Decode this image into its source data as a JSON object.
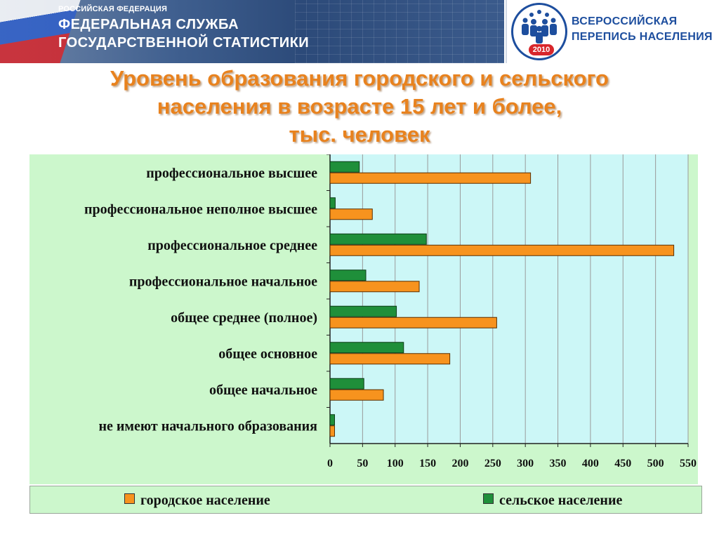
{
  "header": {
    "org_small": "РОССИЙСКАЯ ФЕДЕРАЦИЯ",
    "org_line1": "ФЕДЕРАЛЬНАЯ СЛУЖБА",
    "org_line2": "ГОСУДАРСТВЕННОЙ СТАТИСТИКИ",
    "census_line1": "ВСЕРОССИЙСКАЯ",
    "census_line2": "ПЕРЕПИСЬ НАСЕЛЕНИЯ",
    "census_year": "2010"
  },
  "colors": {
    "urban": "#f7931e",
    "rural": "#1f8f3a",
    "plot_bg": "#ccf7f7",
    "title": "#e8821e"
  },
  "chart_data": {
    "type": "bar",
    "orientation": "horizontal",
    "title_lines": [
      "Уровень образования городского и сельского",
      "населения в возрасте 15 лет и более,",
      "тыс. человек"
    ],
    "categories": [
      "профессиональное высшее",
      "профессиональное неполное высшее",
      "профессиональное среднее",
      "профессиональное начальное",
      "общее среднее (полное)",
      "общее основное",
      "общее начальное",
      "не имеют начального образования"
    ],
    "series": [
      {
        "name": "сельское население",
        "values": [
          45,
          8,
          148,
          55,
          102,
          113,
          52,
          7
        ]
      },
      {
        "name": "городское население",
        "values": [
          308,
          65,
          528,
          137,
          256,
          184,
          82,
          7
        ]
      }
    ],
    "xlim": [
      0,
      550
    ],
    "xticks": [
      0,
      50,
      100,
      150,
      200,
      250,
      300,
      350,
      400,
      450,
      500,
      550
    ],
    "grid": true,
    "legend_position": "bottom"
  }
}
